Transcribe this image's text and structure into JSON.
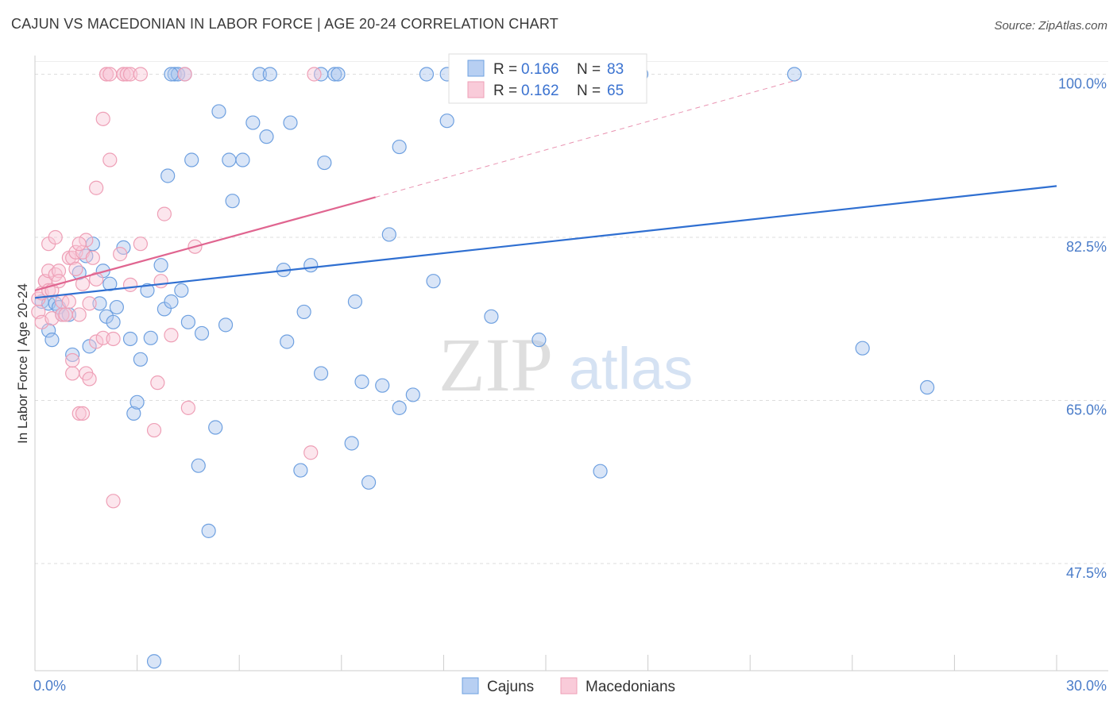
{
  "title": "CAJUN VS MACEDONIAN IN LABOR FORCE | AGE 20-24 CORRELATION CHART",
  "source": "Source: ZipAtlas.com",
  "watermark": {
    "zip": "ZIP",
    "atlas": "atlas"
  },
  "chart_data": {
    "type": "scatter",
    "xlabel": "",
    "ylabel": "In Labor Force | Age 20-24",
    "xlim": [
      0,
      30
    ],
    "ylim": [
      36,
      102
    ],
    "x_tick_labels": [
      {
        "value": 0,
        "label": "0.0%"
      },
      {
        "value": 30,
        "label": "30.0%"
      }
    ],
    "y_tick_labels": [
      {
        "value": 100,
        "label": "100.0%"
      },
      {
        "value": 82.5,
        "label": "82.5%"
      },
      {
        "value": 65,
        "label": "65.0%"
      },
      {
        "value": 47.5,
        "label": "47.5%"
      }
    ],
    "legend_top": [
      {
        "r_label": "R =",
        "r_value": "0.166",
        "n_label": "N =",
        "n_value": "83"
      },
      {
        "r_label": "R =",
        "r_value": "0.162",
        "n_label": "N =",
        "n_value": "65"
      }
    ],
    "series": [
      {
        "name": "Cajuns",
        "color": "#6ea0e0",
        "fill": "#aac6ee",
        "line_color": "#2f6fd1",
        "trend": {
          "x0": 0,
          "y0": 76.0,
          "x1": 30,
          "y1": 88.0
        },
        "points": [
          [
            0.2,
            75.6
          ],
          [
            0.4,
            75.4
          ],
          [
            0.4,
            72.5
          ],
          [
            0.5,
            71.5
          ],
          [
            0.6,
            75.4
          ],
          [
            0.7,
            75.0
          ],
          [
            0.8,
            74.2
          ],
          [
            1.0,
            74.2
          ],
          [
            1.1,
            69.9
          ],
          [
            1.3,
            78.7
          ],
          [
            1.5,
            80.5
          ],
          [
            1.6,
            70.8
          ],
          [
            1.7,
            81.8
          ],
          [
            1.9,
            75.4
          ],
          [
            2.0,
            78.9
          ],
          [
            2.1,
            74.0
          ],
          [
            2.2,
            77.5
          ],
          [
            2.3,
            73.4
          ],
          [
            2.4,
            75.0
          ],
          [
            2.6,
            81.4
          ],
          [
            2.8,
            71.6
          ],
          [
            2.9,
            63.6
          ],
          [
            3.0,
            64.8
          ],
          [
            3.1,
            69.4
          ],
          [
            3.3,
            76.8
          ],
          [
            3.4,
            71.7
          ],
          [
            3.5,
            37.0
          ],
          [
            3.7,
            79.5
          ],
          [
            3.8,
            74.8
          ],
          [
            3.9,
            89.1
          ],
          [
            4.0,
            75.6
          ],
          [
            4.1,
            100.0
          ],
          [
            4.2,
            100.0
          ],
          [
            4.3,
            76.8
          ],
          [
            4.4,
            100.0
          ],
          [
            4.5,
            73.4
          ],
          [
            4.6,
            90.8
          ],
          [
            4.8,
            58.0
          ],
          [
            4.9,
            72.2
          ],
          [
            5.1,
            51.0
          ],
          [
            5.3,
            62.1
          ],
          [
            5.4,
            96.0
          ],
          [
            5.6,
            73.1
          ],
          [
            5.7,
            90.8
          ],
          [
            5.8,
            86.4
          ],
          [
            6.1,
            90.8
          ],
          [
            6.4,
            94.8
          ],
          [
            6.6,
            100.0
          ],
          [
            6.8,
            93.3
          ],
          [
            6.9,
            100.0
          ],
          [
            7.3,
            79.0
          ],
          [
            7.4,
            71.3
          ],
          [
            7.5,
            94.8
          ],
          [
            7.8,
            57.5
          ],
          [
            7.9,
            74.5
          ],
          [
            8.1,
            79.5
          ],
          [
            8.4,
            100.0
          ],
          [
            8.4,
            67.9
          ],
          [
            8.5,
            90.5
          ],
          [
            8.8,
            100.0
          ],
          [
            8.9,
            100.0
          ],
          [
            9.3,
            60.4
          ],
          [
            9.4,
            75.6
          ],
          [
            9.6,
            67.0
          ],
          [
            9.8,
            56.2
          ],
          [
            10.2,
            66.6
          ],
          [
            10.4,
            82.8
          ],
          [
            10.7,
            64.2
          ],
          [
            10.7,
            92.2
          ],
          [
            11.1,
            65.6
          ],
          [
            11.5,
            100.0
          ],
          [
            11.7,
            77.8
          ],
          [
            12.1,
            100.0
          ],
          [
            12.1,
            95.0
          ],
          [
            13.4,
            74.0
          ],
          [
            14.7,
            100.0
          ],
          [
            14.8,
            71.5
          ],
          [
            16.6,
            57.4
          ],
          [
            17.8,
            100.0
          ],
          [
            22.3,
            100.0
          ],
          [
            24.3,
            70.6
          ],
          [
            26.2,
            66.4
          ],
          [
            4.0,
            100.0
          ]
        ]
      },
      {
        "name": "Macedonians",
        "color": "#ee9fb6",
        "fill": "#f8c8d6",
        "line_color": "#e06590",
        "trend": {
          "x0": 0,
          "y0": 76.8,
          "x1": 10,
          "y1": 86.8
        },
        "trend_extension": {
          "x0": 10,
          "y0": 86.8,
          "x1": 22.4,
          "y1": 99.4
        },
        "points": [
          [
            0.1,
            74.5
          ],
          [
            0.1,
            75.9
          ],
          [
            0.2,
            73.4
          ],
          [
            0.2,
            76.5
          ],
          [
            0.3,
            77.8
          ],
          [
            0.3,
            77.8
          ],
          [
            0.4,
            78.9
          ],
          [
            0.4,
            81.8
          ],
          [
            0.4,
            76.8
          ],
          [
            0.5,
            73.8
          ],
          [
            0.5,
            76.8
          ],
          [
            0.6,
            82.5
          ],
          [
            0.6,
            78.5
          ],
          [
            0.7,
            78.9
          ],
          [
            0.7,
            77.8
          ],
          [
            0.8,
            74.2
          ],
          [
            0.8,
            75.6
          ],
          [
            0.9,
            74.2
          ],
          [
            1.0,
            80.3
          ],
          [
            1.0,
            75.6
          ],
          [
            1.1,
            80.3
          ],
          [
            1.1,
            67.9
          ],
          [
            1.1,
            69.3
          ],
          [
            1.2,
            79.1
          ],
          [
            1.2,
            80.9
          ],
          [
            1.3,
            74.2
          ],
          [
            1.3,
            63.6
          ],
          [
            1.4,
            63.6
          ],
          [
            1.4,
            80.9
          ],
          [
            1.4,
            77.5
          ],
          [
            1.5,
            82.2
          ],
          [
            1.5,
            67.9
          ],
          [
            1.6,
            67.3
          ],
          [
            1.6,
            75.4
          ],
          [
            1.7,
            80.3
          ],
          [
            1.8,
            87.8
          ],
          [
            1.8,
            71.3
          ],
          [
            1.8,
            78.0
          ],
          [
            2.0,
            95.2
          ],
          [
            2.0,
            71.7
          ],
          [
            2.1,
            100.0
          ],
          [
            2.1,
            100.0
          ],
          [
            2.2,
            100.0
          ],
          [
            2.2,
            90.8
          ],
          [
            2.3,
            54.2
          ],
          [
            2.3,
            71.6
          ],
          [
            2.5,
            80.7
          ],
          [
            2.6,
            100.0
          ],
          [
            2.6,
            100.0
          ],
          [
            2.7,
            100.0
          ],
          [
            2.8,
            77.4
          ],
          [
            2.8,
            100.0
          ],
          [
            3.1,
            100.0
          ],
          [
            3.1,
            81.8
          ],
          [
            3.5,
            61.8
          ],
          [
            3.6,
            66.9
          ],
          [
            3.7,
            77.8
          ],
          [
            3.8,
            85.0
          ],
          [
            4.0,
            72.0
          ],
          [
            4.4,
            100.0
          ],
          [
            4.5,
            64.2
          ],
          [
            4.7,
            81.5
          ],
          [
            8.2,
            100.0
          ],
          [
            8.1,
            59.4
          ],
          [
            1.3,
            81.8
          ]
        ]
      }
    ]
  }
}
